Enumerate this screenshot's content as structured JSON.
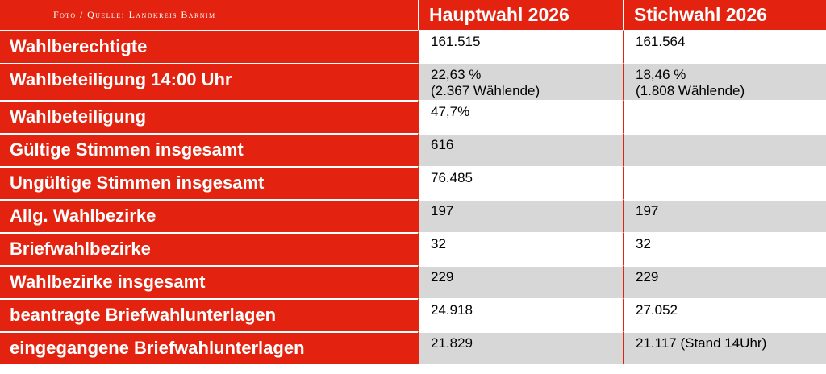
{
  "header": {
    "credit": "Foto / Quelle: Landkreis Barnim",
    "col_main": "Hauptwahl 2026",
    "col_runoff": "Stichwahl 2026"
  },
  "rows": [
    {
      "label": "Wahlberechtigte",
      "main": [
        "161.515"
      ],
      "runoff": [
        "161.564"
      ]
    },
    {
      "label": "Wahlbeteiligung 14:00 Uhr",
      "main": [
        "22,63 %",
        "(2.367 Wählende)"
      ],
      "runoff": [
        "18,46 %",
        "(1.808 Wählende)"
      ]
    },
    {
      "label": "Wahlbeteiligung",
      "main": [
        "47,7%"
      ],
      "runoff": [
        ""
      ]
    },
    {
      "label": "Gültige Stimmen insgesamt",
      "main": [
        "616"
      ],
      "runoff": [
        ""
      ]
    },
    {
      "label": "Ungültige Stimmen insgesamt",
      "main": [
        "76.485"
      ],
      "runoff": [
        ""
      ]
    },
    {
      "label": "Allg. Wahlbezirke",
      "main": [
        "197"
      ],
      "runoff": [
        "197"
      ]
    },
    {
      "label": "Briefwahlbezirke",
      "main": [
        "32"
      ],
      "runoff": [
        "32"
      ]
    },
    {
      "label": "Wahlbezirke insgesamt",
      "main": [
        "229"
      ],
      "runoff": [
        "229"
      ]
    },
    {
      "label": "beantragte Briefwahlunterlagen",
      "main": [
        "24.918"
      ],
      "runoff": [
        "27.052"
      ]
    },
    {
      "label": "eingegangene Briefwahlunterlagen",
      "main": [
        "21.829"
      ],
      "runoff": [
        "21.117 (Stand 14Uhr)"
      ]
    }
  ],
  "colors": {
    "header_red": "#e3230f",
    "stripe_grey": "#d7d7d7",
    "white": "#ffffff"
  }
}
